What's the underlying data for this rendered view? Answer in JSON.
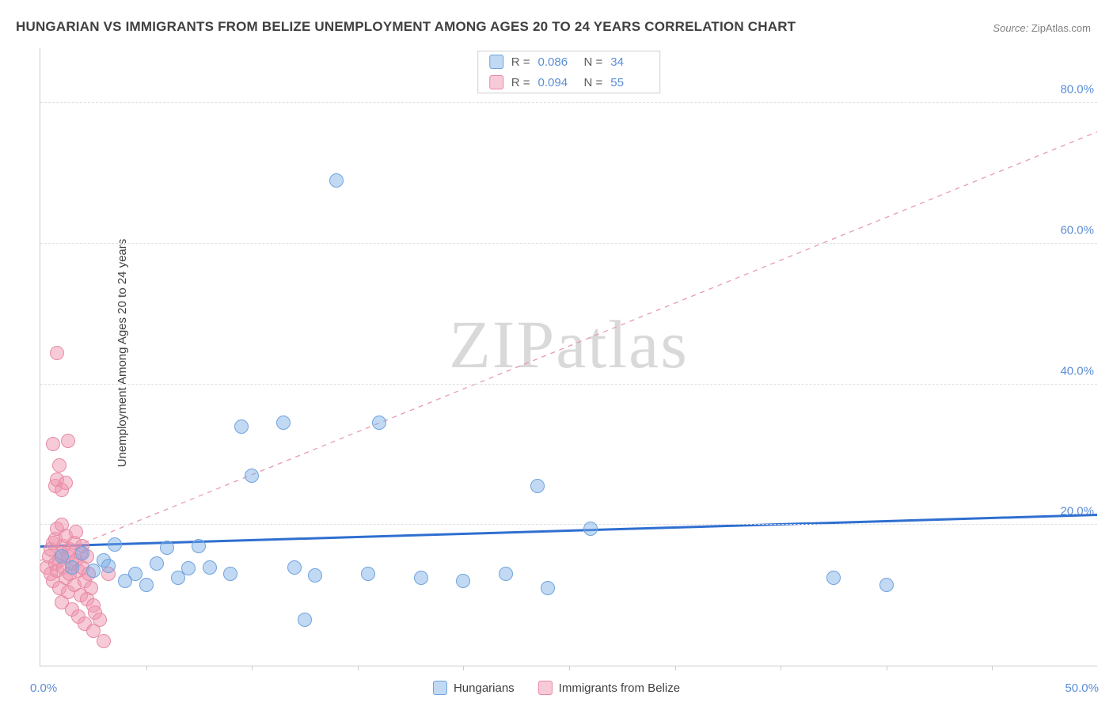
{
  "title": "HUNGARIAN VS IMMIGRANTS FROM BELIZE UNEMPLOYMENT AMONG AGES 20 TO 24 YEARS CORRELATION CHART",
  "source": {
    "label": "Source:",
    "name": "ZipAtlas.com"
  },
  "ylabel": "Unemployment Among Ages 20 to 24 years",
  "watermark": "ZIPatlas",
  "chart": {
    "type": "scatter",
    "xmin": 0,
    "xmax": 50,
    "ymin": 0,
    "ymax": 88,
    "xticks": [
      5,
      10,
      15,
      20,
      25,
      30,
      35,
      40,
      45
    ],
    "xcorner_min": "0.0%",
    "xcorner_max": "50.0%",
    "yticks": [
      {
        "v": 20,
        "label": "20.0%"
      },
      {
        "v": 40,
        "label": "40.0%"
      },
      {
        "v": 60,
        "label": "60.0%"
      },
      {
        "v": 80,
        "label": "80.0%"
      }
    ],
    "grid_color": "#e0e0e0",
    "axis_color": "#cccccc",
    "bg": "#ffffff",
    "ylabel_color": "#5b8dd6",
    "xlabel_color": "#5b8dd6"
  },
  "series": {
    "hungarians": {
      "label": "Hungarians",
      "fill": "rgba(120,170,230,0.45)",
      "stroke": "#6fa3dd",
      "marker_r": 9,
      "stats": {
        "R_label": "R =",
        "R": "0.086",
        "N_label": "N =",
        "N": "34"
      },
      "trend": {
        "color": "#2f6fd0",
        "width": 3,
        "dash": "none",
        "y0": 17.0,
        "y1": 21.5
      },
      "points": [
        [
          1.0,
          15.5
        ],
        [
          1.5,
          14.0
        ],
        [
          2.0,
          16.0
        ],
        [
          2.5,
          13.5
        ],
        [
          3.0,
          15.0
        ],
        [
          3.2,
          14.2
        ],
        [
          3.5,
          17.2
        ],
        [
          4.0,
          12.0
        ],
        [
          4.5,
          13.0
        ],
        [
          5.0,
          11.5
        ],
        [
          5.5,
          14.5
        ],
        [
          6.0,
          16.8
        ],
        [
          6.5,
          12.5
        ],
        [
          7.0,
          13.8
        ],
        [
          7.5,
          17.0
        ],
        [
          8.0,
          14.0
        ],
        [
          9.0,
          13.0
        ],
        [
          9.5,
          34.0
        ],
        [
          10.0,
          27.0
        ],
        [
          11.5,
          34.5
        ],
        [
          12.0,
          14.0
        ],
        [
          12.5,
          6.5
        ],
        [
          13.0,
          12.8
        ],
        [
          14.0,
          69.0
        ],
        [
          15.5,
          13.0
        ],
        [
          16.0,
          34.5
        ],
        [
          18.0,
          12.5
        ],
        [
          20.0,
          12.0
        ],
        [
          22.0,
          13.0
        ],
        [
          23.5,
          25.5
        ],
        [
          24.0,
          11.0
        ],
        [
          26.0,
          19.5
        ],
        [
          37.5,
          12.5
        ],
        [
          40.0,
          11.5
        ]
      ]
    },
    "belize": {
      "label": "Immigrants from Belize",
      "fill": "rgba(240,150,175,0.50)",
      "stroke": "#e68aa5",
      "marker_r": 9,
      "stats": {
        "R_label": "R =",
        "R": "0.094",
        "N_label": "N =",
        "N": "55"
      },
      "trend": {
        "color": "#e69ab3",
        "width": 1.3,
        "dash": "6,6",
        "y0": 15.0,
        "y1": 76.0
      },
      "points": [
        [
          0.3,
          14.0
        ],
        [
          0.4,
          15.5
        ],
        [
          0.5,
          13.0
        ],
        [
          0.5,
          16.5
        ],
        [
          0.6,
          12.0
        ],
        [
          0.6,
          17.5
        ],
        [
          0.7,
          14.5
        ],
        [
          0.7,
          18.0
        ],
        [
          0.8,
          13.5
        ],
        [
          0.8,
          19.5
        ],
        [
          0.9,
          15.0
        ],
        [
          0.9,
          11.0
        ],
        [
          1.0,
          16.0
        ],
        [
          1.0,
          20.0
        ],
        [
          1.0,
          9.0
        ],
        [
          1.1,
          14.0
        ],
        [
          1.1,
          17.0
        ],
        [
          1.2,
          12.5
        ],
        [
          1.2,
          18.5
        ],
        [
          1.3,
          15.5
        ],
        [
          1.3,
          10.5
        ],
        [
          1.4,
          13.0
        ],
        [
          1.4,
          16.5
        ],
        [
          1.5,
          14.5
        ],
        [
          1.5,
          8.0
        ],
        [
          1.6,
          17.5
        ],
        [
          1.6,
          11.5
        ],
        [
          1.7,
          15.0
        ],
        [
          1.7,
          19.0
        ],
        [
          1.8,
          13.5
        ],
        [
          1.8,
          7.0
        ],
        [
          1.9,
          16.0
        ],
        [
          1.9,
          10.0
        ],
        [
          2.0,
          14.0
        ],
        [
          2.0,
          17.0
        ],
        [
          2.1,
          12.0
        ],
        [
          2.1,
          6.0
        ],
        [
          2.2,
          15.5
        ],
        [
          2.2,
          9.5
        ],
        [
          2.3,
          13.0
        ],
        [
          2.4,
          11.0
        ],
        [
          2.5,
          8.5
        ],
        [
          2.5,
          5.0
        ],
        [
          2.6,
          7.5
        ],
        [
          2.8,
          6.5
        ],
        [
          3.0,
          3.5
        ],
        [
          0.7,
          25.5
        ],
        [
          0.8,
          26.5
        ],
        [
          0.9,
          28.5
        ],
        [
          1.0,
          25.0
        ],
        [
          1.2,
          26.0
        ],
        [
          0.6,
          31.5
        ],
        [
          1.3,
          32.0
        ],
        [
          0.8,
          44.5
        ],
        [
          3.2,
          13.0
        ]
      ]
    }
  }
}
